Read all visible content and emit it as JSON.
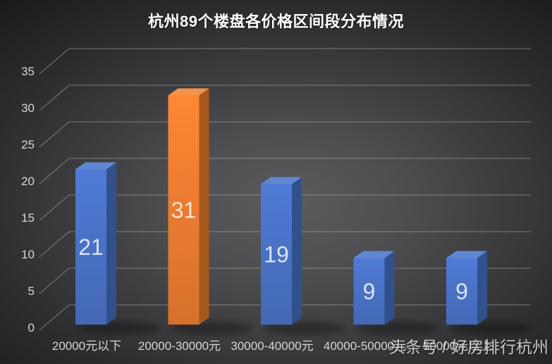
{
  "watermark": {
    "text": "头条号 / 好房排行杭州"
  },
  "chart_data": {
    "type": "bar",
    "variant": "3d-column",
    "title": "杭州89个楼盘各价格区间段分布情况",
    "categories": [
      "20000元以下",
      "20000-30000元",
      "30000-40000元",
      "40000-50000元",
      "50000元以上"
    ],
    "values": [
      21,
      31,
      19,
      9,
      9
    ],
    "value_labels": [
      "21",
      "31",
      "19",
      "9",
      "9"
    ],
    "xlabel": "",
    "ylabel": "",
    "ylim": [
      0,
      35
    ],
    "yticks": [
      0,
      5,
      10,
      15,
      20,
      25,
      30,
      35
    ],
    "legend": "none",
    "grid": "horizontal-3d",
    "highlighted_category_index": 1,
    "colors": {
      "bar_front": [
        "#4a73c8",
        "#ee7d31",
        "#4a73c8",
        "#4a73c8",
        "#4a73c8"
      ],
      "bar_side": [
        "#30518c",
        "#a5581e",
        "#30518c",
        "#30518c",
        "#30518c"
      ],
      "bar_top": [
        "#6187d2",
        "#f2944a",
        "#6187d2",
        "#6187d2",
        "#6187d2"
      ],
      "value_label": [
        "#dbe4f4",
        "#f6e3d2",
        "#dbe4f4",
        "#dbe4f4",
        "#dbe4f4"
      ],
      "gridline": "#c0c0c4",
      "axis_label": "#d6d6d6",
      "title": "#ffffff",
      "background_center": "#5b5b5d",
      "background_edge": "#1a1a1b"
    }
  }
}
